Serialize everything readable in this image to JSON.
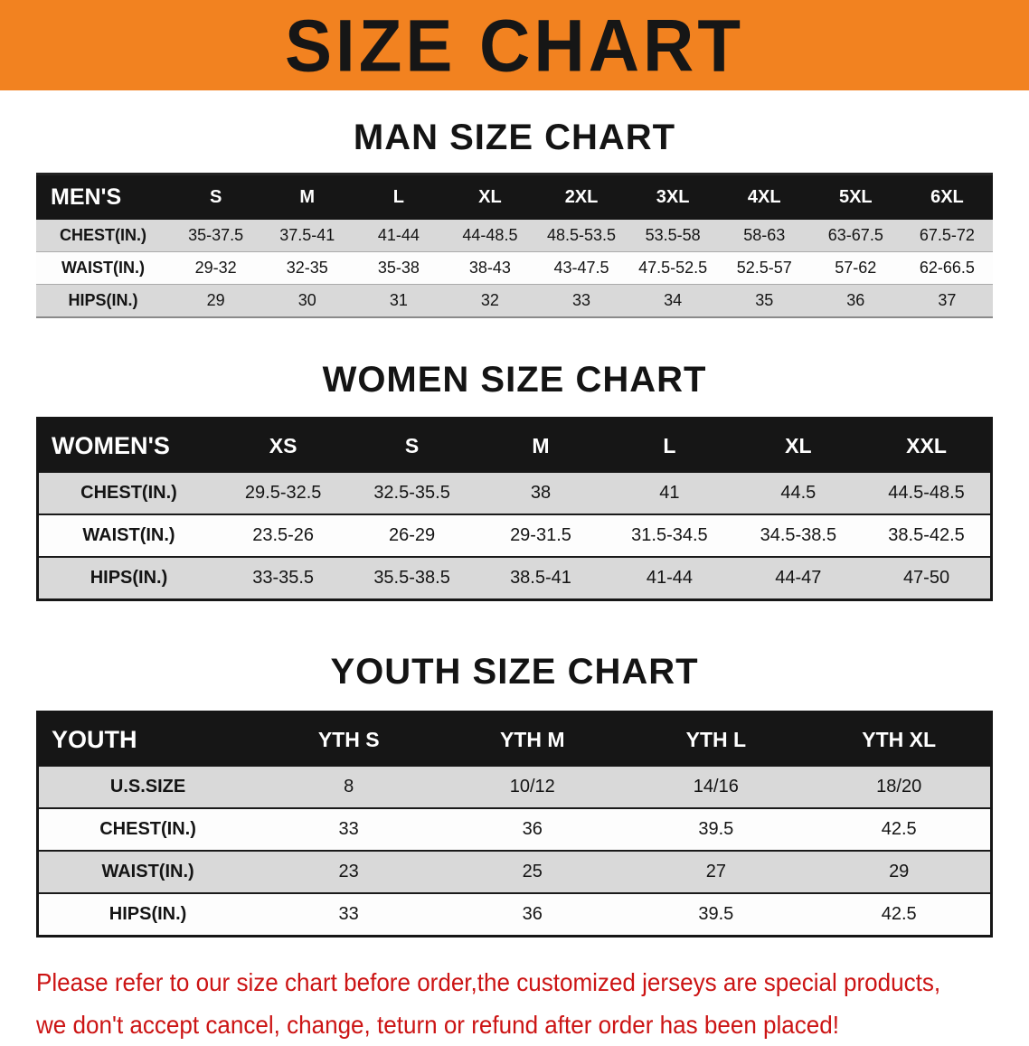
{
  "banner": {
    "title": "SIZE CHART",
    "bg_color": "#f28220",
    "text_color": "#161616"
  },
  "chart_data": [
    {
      "type": "table",
      "title": "MAN SIZE CHART",
      "header_label": "MEN'S",
      "columns": [
        "S",
        "M",
        "L",
        "XL",
        "2XL",
        "3XL",
        "4XL",
        "5XL",
        "6XL"
      ],
      "rows": [
        {
          "label": "CHEST(IN.)",
          "values": [
            "35-37.5",
            "37.5-41",
            "41-44",
            "44-48.5",
            "48.5-53.5",
            "53.5-58",
            "58-63",
            "63-67.5",
            "67.5-72"
          ]
        },
        {
          "label": "WAIST(IN.)",
          "values": [
            "29-32",
            "32-35",
            "35-38",
            "38-43",
            "43-47.5",
            "47.5-52.5",
            "52.5-57",
            "57-62",
            "62-66.5"
          ]
        },
        {
          "label": "HIPS(IN.)",
          "values": [
            "29",
            "30",
            "31",
            "32",
            "33",
            "34",
            "35",
            "36",
            "37"
          ]
        }
      ]
    },
    {
      "type": "table",
      "title": "WOMEN SIZE CHART",
      "header_label": "WOMEN'S",
      "columns": [
        "XS",
        "S",
        "M",
        "L",
        "XL",
        "XXL"
      ],
      "rows": [
        {
          "label": "CHEST(IN.)",
          "values": [
            "29.5-32.5",
            "32.5-35.5",
            "38",
            "41",
            "44.5",
            "44.5-48.5"
          ]
        },
        {
          "label": "WAIST(IN.)",
          "values": [
            "23.5-26",
            "26-29",
            "29-31.5",
            "31.5-34.5",
            "34.5-38.5",
            "38.5-42.5"
          ]
        },
        {
          "label": "HIPS(IN.)",
          "values": [
            "33-35.5",
            "35.5-38.5",
            "38.5-41",
            "41-44",
            "44-47",
            "47-50"
          ]
        }
      ]
    },
    {
      "type": "table",
      "title": "YOUTH SIZE CHART",
      "header_label": "YOUTH",
      "columns": [
        "YTH S",
        "YTH M",
        "YTH L",
        "YTH XL"
      ],
      "rows": [
        {
          "label": "U.S.SIZE",
          "values": [
            "8",
            "10/12",
            "14/16",
            "18/20"
          ]
        },
        {
          "label": "CHEST(IN.)",
          "values": [
            "33",
            "36",
            "39.5",
            "42.5"
          ]
        },
        {
          "label": "WAIST(IN.)",
          "values": [
            "23",
            "25",
            "27",
            "29"
          ]
        },
        {
          "label": "HIPS(IN.)",
          "values": [
            "33",
            "36",
            "39.5",
            "42.5"
          ]
        }
      ]
    }
  ],
  "footer": {
    "line1": "Please refer to our size chart before order,the customized jerseys are special products,",
    "line2": "we don't accept cancel, change, teturn or refund after order has been placed!",
    "text_color": "#cc1414"
  }
}
